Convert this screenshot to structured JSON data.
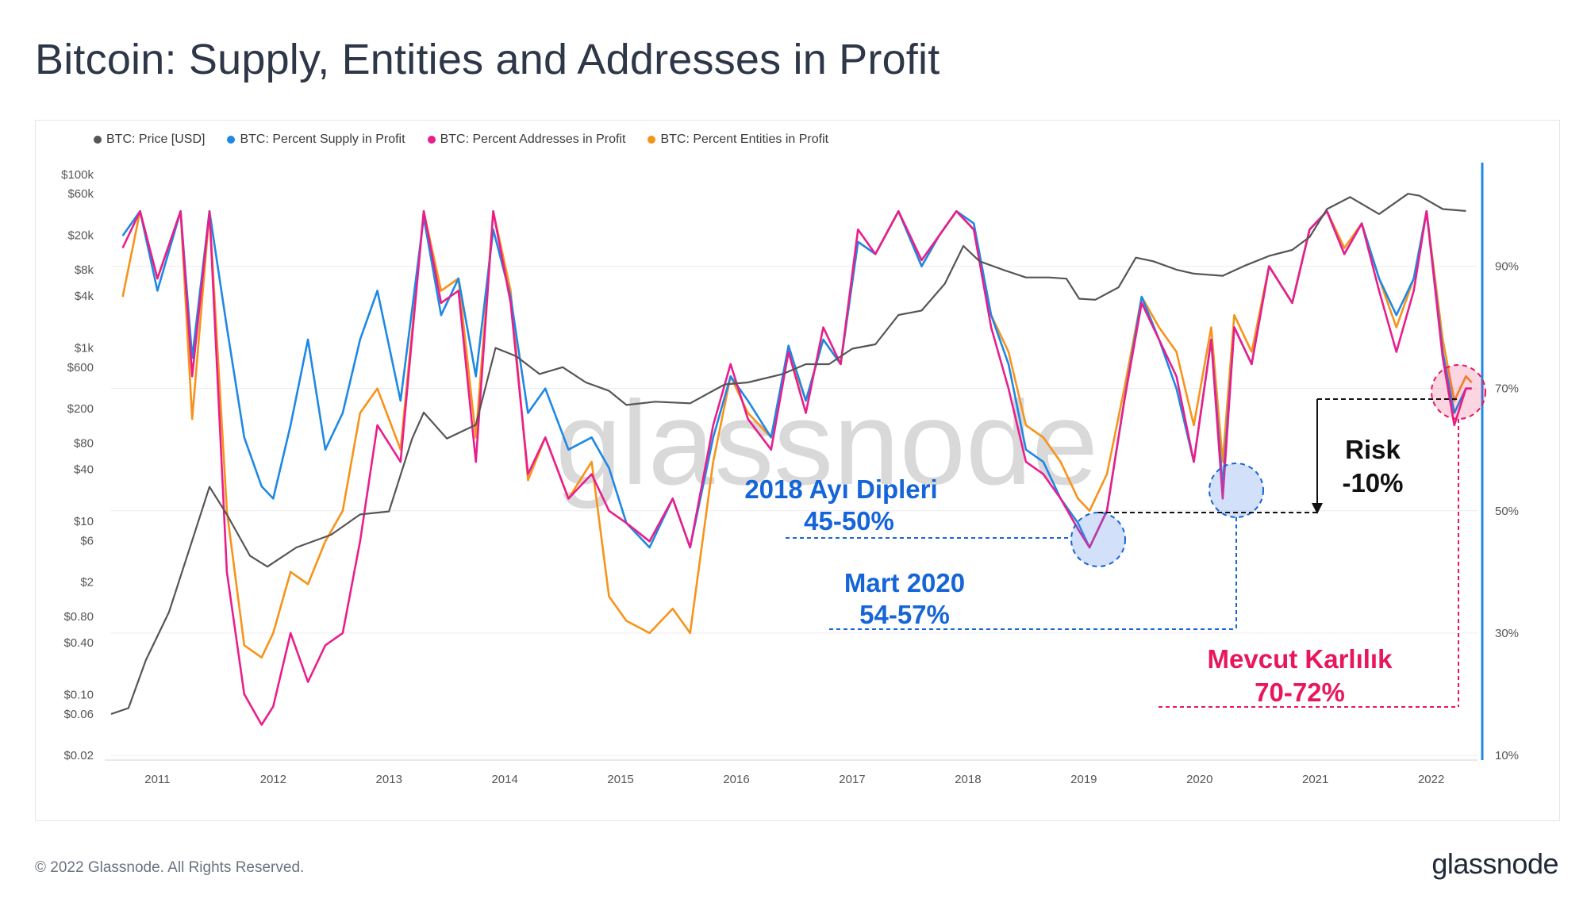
{
  "title": "Bitcoin: Supply, Entities and Addresses in Profit",
  "footer": {
    "copyright": "© 2022 Glassnode. All Rights Reserved.",
    "logo_text": "glassnode"
  },
  "watermark": "glassnode",
  "legend": [
    {
      "label": "BTC: Price [USD]",
      "color": "#555555"
    },
    {
      "label": "BTC: Percent Supply in Profit",
      "color": "#1e88e5"
    },
    {
      "label": "BTC: Percent Addresses in Profit",
      "color": "#e91e8c"
    },
    {
      "label": "BTC: Percent Entities in Profit",
      "color": "#f7931a"
    }
  ],
  "chart_data": {
    "type": "line",
    "title": "Bitcoin: Supply, Entities and Addresses in Profit",
    "x_range": [
      2010.6,
      2022.4
    ],
    "x_ticks": [
      "2011",
      "2012",
      "2013",
      "2014",
      "2015",
      "2016",
      "2017",
      "2018",
      "2019",
      "2020",
      "2021",
      "2022"
    ],
    "y_left": {
      "scale": "log",
      "range": [
        0.02,
        100000
      ],
      "tick_values": [
        100000,
        60000,
        20000,
        8000,
        4000,
        1000,
        600,
        200,
        80,
        40,
        10,
        6,
        2,
        0.8,
        0.4,
        0.1,
        0.06,
        0.02
      ],
      "tick_labels": [
        "$100k",
        "$60k",
        "$20k",
        "$8k",
        "$4k",
        "$1k",
        "$600",
        "$200",
        "$80",
        "$40",
        "$10",
        "$6",
        "$2",
        "$0.80",
        "$0.40",
        "$0.10",
        "$0.06",
        "$0.02"
      ]
    },
    "y_right": {
      "scale": "linear",
      "range": [
        10,
        105
      ],
      "tick_values": [
        90,
        70,
        50,
        30,
        10
      ],
      "tick_labels": [
        "90%",
        "70%",
        "50%",
        "30%",
        "10%"
      ]
    },
    "series": [
      {
        "name": "BTC: Price [USD]",
        "axis": "left",
        "color": "#555555",
        "x": [
          2010.6,
          2010.75,
          2010.9,
          2011.1,
          2011.3,
          2011.45,
          2011.6,
          2011.8,
          2011.95,
          2012.2,
          2012.5,
          2012.75,
          2013.0,
          2013.2,
          2013.3,
          2013.5,
          2013.75,
          2013.92,
          2014.1,
          2014.3,
          2014.5,
          2014.7,
          2014.9,
          2015.05,
          2015.3,
          2015.6,
          2015.9,
          2016.1,
          2016.4,
          2016.6,
          2016.8,
          2017.0,
          2017.2,
          2017.4,
          2017.6,
          2017.8,
          2017.96,
          2018.1,
          2018.3,
          2018.5,
          2018.7,
          2018.85,
          2018.96,
          2019.1,
          2019.3,
          2019.45,
          2019.6,
          2019.8,
          2019.95,
          2020.2,
          2020.4,
          2020.6,
          2020.8,
          2020.95,
          2021.1,
          2021.3,
          2021.55,
          2021.8,
          2021.9,
          2022.1,
          2022.3
        ],
        "values": [
          0.06,
          0.07,
          0.25,
          0.9,
          6,
          25,
          12,
          4,
          3,
          5,
          7,
          12,
          13,
          90,
          180,
          90,
          130,
          1000,
          800,
          500,
          600,
          400,
          320,
          220,
          240,
          230,
          380,
          400,
          500,
          650,
          650,
          980,
          1100,
          2400,
          2700,
          5500,
          15000,
          10000,
          8000,
          6500,
          6500,
          6300,
          3700,
          3600,
          5000,
          11000,
          10000,
          8000,
          7200,
          6800,
          9000,
          11500,
          13500,
          19000,
          40000,
          55000,
          35000,
          60000,
          57000,
          40000,
          38000
        ]
      },
      {
        "name": "BTC: Percent Supply in Profit",
        "axis": "right",
        "color": "#1e88e5",
        "x": [
          2010.7,
          2010.85,
          2011.0,
          2011.2,
          2011.3,
          2011.45,
          2011.6,
          2011.75,
          2011.9,
          2012.0,
          2012.15,
          2012.3,
          2012.45,
          2012.6,
          2012.75,
          2012.9,
          2013.1,
          2013.3,
          2013.45,
          2013.6,
          2013.75,
          2013.9,
          2014.05,
          2014.2,
          2014.35,
          2014.55,
          2014.75,
          2014.9,
          2015.05,
          2015.25,
          2015.45,
          2015.6,
          2015.8,
          2015.95,
          2016.1,
          2016.3,
          2016.45,
          2016.6,
          2016.75,
          2016.9,
          2017.05,
          2017.2,
          2017.4,
          2017.6,
          2017.75,
          2017.9,
          2018.05,
          2018.2,
          2018.35,
          2018.5,
          2018.65,
          2018.8,
          2018.95,
          2019.05,
          2019.2,
          2019.35,
          2019.5,
          2019.65,
          2019.8,
          2019.95,
          2020.1,
          2020.2,
          2020.3,
          2020.45,
          2020.6,
          2020.8,
          2020.95,
          2021.1,
          2021.25,
          2021.4,
          2021.55,
          2021.7,
          2021.85,
          2021.96,
          2022.1,
          2022.2,
          2022.3,
          2022.35
        ],
        "values": [
          95,
          99,
          86,
          99,
          75,
          99,
          80,
          62,
          54,
          52,
          64,
          78,
          60,
          66,
          78,
          86,
          68,
          98,
          82,
          88,
          72,
          96,
          85,
          66,
          70,
          60,
          62,
          57,
          48,
          44,
          52,
          44,
          62,
          72,
          68,
          62,
          77,
          68,
          78,
          74,
          94,
          92,
          99,
          90,
          95,
          99,
          97,
          82,
          74,
          60,
          58,
          52,
          48,
          44,
          50,
          68,
          85,
          78,
          70,
          58,
          78,
          54,
          80,
          74,
          90,
          84,
          96,
          99,
          92,
          97,
          88,
          82,
          88,
          99,
          76,
          66,
          70,
          70
        ]
      },
      {
        "name": "BTC: Percent Addresses in Profit",
        "axis": "right",
        "color": "#e91e8c",
        "x": [
          2010.7,
          2010.85,
          2011.0,
          2011.2,
          2011.3,
          2011.45,
          2011.6,
          2011.75,
          2011.9,
          2012.0,
          2012.15,
          2012.3,
          2012.45,
          2012.6,
          2012.75,
          2012.9,
          2013.1,
          2013.3,
          2013.45,
          2013.6,
          2013.75,
          2013.9,
          2014.05,
          2014.2,
          2014.35,
          2014.55,
          2014.75,
          2014.9,
          2015.05,
          2015.25,
          2015.45,
          2015.6,
          2015.8,
          2015.95,
          2016.1,
          2016.3,
          2016.45,
          2016.6,
          2016.75,
          2016.9,
          2017.05,
          2017.2,
          2017.4,
          2017.6,
          2017.75,
          2017.9,
          2018.05,
          2018.2,
          2018.35,
          2018.5,
          2018.65,
          2018.8,
          2018.95,
          2019.05,
          2019.2,
          2019.35,
          2019.5,
          2019.65,
          2019.8,
          2019.95,
          2020.1,
          2020.2,
          2020.3,
          2020.45,
          2020.6,
          2020.8,
          2020.95,
          2021.1,
          2021.25,
          2021.4,
          2021.55,
          2021.7,
          2021.85,
          2021.96,
          2022.1,
          2022.2,
          2022.3,
          2022.35
        ],
        "values": [
          93,
          99,
          88,
          99,
          72,
          99,
          40,
          20,
          15,
          18,
          30,
          22,
          28,
          30,
          45,
          64,
          58,
          99,
          84,
          86,
          58,
          99,
          84,
          56,
          62,
          52,
          56,
          50,
          48,
          45,
          52,
          44,
          64,
          74,
          65,
          60,
          76,
          66,
          80,
          74,
          96,
          92,
          99,
          91,
          95,
          99,
          96,
          80,
          70,
          58,
          56,
          52,
          47,
          44,
          50,
          68,
          84,
          78,
          72,
          58,
          78,
          52,
          80,
          74,
          90,
          84,
          96,
          99,
          92,
          97,
          86,
          76,
          86,
          99,
          75,
          64,
          70,
          70
        ]
      },
      {
        "name": "BTC: Percent Entities in Profit",
        "axis": "right",
        "color": "#f7931a",
        "x": [
          2010.7,
          2010.85,
          2011.0,
          2011.2,
          2011.3,
          2011.45,
          2011.6,
          2011.75,
          2011.9,
          2012.0,
          2012.15,
          2012.3,
          2012.45,
          2012.6,
          2012.75,
          2012.9,
          2013.1,
          2013.3,
          2013.45,
          2013.6,
          2013.75,
          2013.9,
          2014.05,
          2014.2,
          2014.35,
          2014.55,
          2014.75,
          2014.9,
          2015.05,
          2015.25,
          2015.45,
          2015.6,
          2015.8,
          2015.95,
          2016.1,
          2016.3,
          2016.45,
          2016.6,
          2016.75,
          2016.9,
          2017.05,
          2017.2,
          2017.4,
          2017.6,
          2017.75,
          2017.9,
          2018.05,
          2018.2,
          2018.35,
          2018.5,
          2018.65,
          2018.8,
          2018.95,
          2019.05,
          2019.2,
          2019.35,
          2019.5,
          2019.65,
          2019.8,
          2019.95,
          2020.1,
          2020.2,
          2020.3,
          2020.45,
          2020.6,
          2020.8,
          2020.95,
          2021.1,
          2021.25,
          2021.4,
          2021.55,
          2021.7,
          2021.85,
          2021.96,
          2022.1,
          2022.2,
          2022.3,
          2022.35
        ],
        "values": [
          85,
          99,
          88,
          99,
          65,
          99,
          50,
          28,
          26,
          30,
          40,
          38,
          45,
          50,
          66,
          70,
          60,
          99,
          86,
          88,
          62,
          99,
          86,
          55,
          62,
          52,
          58,
          36,
          32,
          30,
          34,
          30,
          58,
          72,
          66,
          62,
          76,
          68,
          78,
          74,
          94,
          92,
          99,
          90,
          95,
          99,
          96,
          82,
          76,
          64,
          62,
          58,
          52,
          50,
          56,
          70,
          85,
          80,
          76,
          64,
          80,
          58,
          82,
          76,
          90,
          84,
          96,
          99,
          93,
          97,
          88,
          80,
          88,
          99,
          78,
          68,
          72,
          71
        ]
      }
    ]
  },
  "annotations": {
    "bear_2018_line1": "2018 Ayı Dipleri",
    "bear_2018_line2": "45-50%",
    "march_2020_line1": "Mart 2020",
    "march_2020_line2": "54-57%",
    "current_line1": "Mevcut Karlılık",
    "current_line2": "70-72%",
    "risk_line1": "Risk",
    "risk_line2": "-10%"
  }
}
